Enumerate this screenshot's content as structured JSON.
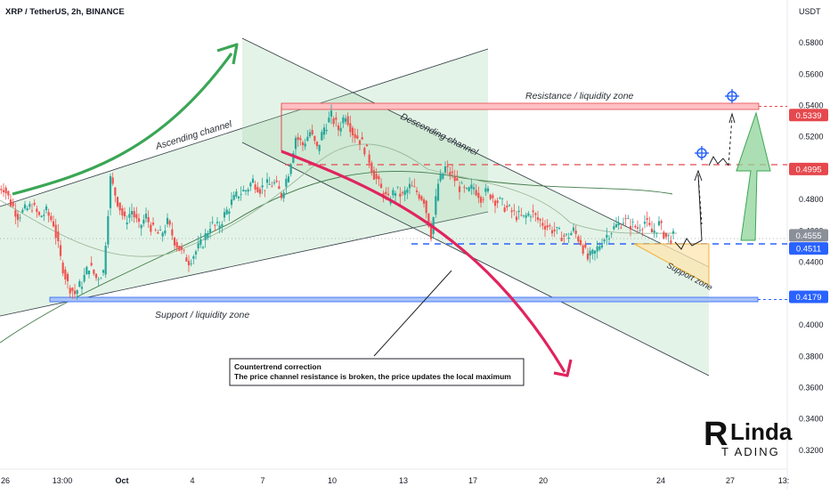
{
  "header": {
    "title": "XRP / TetherUS, 2h, BINANCE",
    "currency": "USDT"
  },
  "chart_data": {
    "type": "candlestick",
    "symbol": "XRP / TetherUS",
    "interval": "2h",
    "exchange": "BINANCE",
    "y_unit": "USDT",
    "ylim": [
      0.312,
      0.588
    ],
    "y_ticks": [
      "0.5800",
      "0.5600",
      "0.5400",
      "0.5200",
      "0.5000",
      "0.4800",
      "0.4600",
      "0.4400",
      "0.4200",
      "0.4000",
      "0.3800",
      "0.3600",
      "0.3400",
      "0.3200"
    ],
    "x_ticks": [
      "26",
      "13:00",
      "Oct",
      "4",
      "7",
      "10",
      "13",
      "17",
      "20",
      "24",
      "27",
      "13:"
    ],
    "price_labels": [
      {
        "value": "0.5339",
        "color": "#e5484d"
      },
      {
        "value": "0.4995",
        "color": "#e5484d"
      },
      {
        "value": "0.4555",
        "color": "#8a8f98"
      },
      {
        "value": "0.4511",
        "color": "#2962ff"
      },
      {
        "value": "0.4179",
        "color": "#2962ff"
      }
    ],
    "levels": {
      "resistance": 0.5339,
      "breakout": 0.4995,
      "current": 0.4555,
      "support_local": 0.4511,
      "support": 0.4179
    },
    "close_path": [
      0.488,
      0.478,
      0.47,
      0.473,
      0.476,
      0.469,
      0.472,
      0.465,
      0.442,
      0.426,
      0.42,
      0.427,
      0.438,
      0.43,
      0.434,
      0.493,
      0.479,
      0.466,
      0.473,
      0.462,
      0.469,
      0.46,
      0.457,
      0.465,
      0.454,
      0.446,
      0.441,
      0.447,
      0.453,
      0.464,
      0.462,
      0.47,
      0.478,
      0.484,
      0.486,
      0.492,
      0.487,
      0.489,
      0.49,
      0.483,
      0.498,
      0.52,
      0.515,
      0.523,
      0.512,
      0.526,
      0.533,
      0.525,
      0.535,
      0.523,
      0.518,
      0.51,
      0.496,
      0.486,
      0.479,
      0.486,
      0.482,
      0.488,
      0.485,
      0.48,
      0.458,
      0.49,
      0.5,
      0.495,
      0.488,
      0.484,
      0.488,
      0.482,
      0.485,
      0.48,
      0.477,
      0.473,
      0.47,
      0.468,
      0.472,
      0.467,
      0.464,
      0.461,
      0.458,
      0.456,
      0.46,
      0.453,
      0.442,
      0.446,
      0.454,
      0.459,
      0.463,
      0.467,
      0.464,
      0.462,
      0.466,
      0.459,
      0.464,
      0.456,
      0.456
    ],
    "trades": [],
    "annotations": {
      "ascending_channel": "Ascending channel",
      "descending_channel": "Descending channel",
      "resistance_zone": "Resistance / liquidity zone",
      "support_zone_label": "Support / liquidity zone",
      "support_zone_small": "Support zone",
      "callout_title": "Countertrend correction",
      "callout_text": "The price channel resistance is broken, the price updates the local maximum"
    },
    "grid": false,
    "legend": "none"
  },
  "branding": {
    "logo_initial": "R",
    "logo_name": "Linda",
    "logo_sub": "T  ADING"
  },
  "colors": {
    "up": "#26a69a",
    "down": "#ef5350",
    "resistance": "#e5484d",
    "support": "#2962ff",
    "arrow_green": "#3aa655",
    "arrow_red": "#e0245e"
  }
}
